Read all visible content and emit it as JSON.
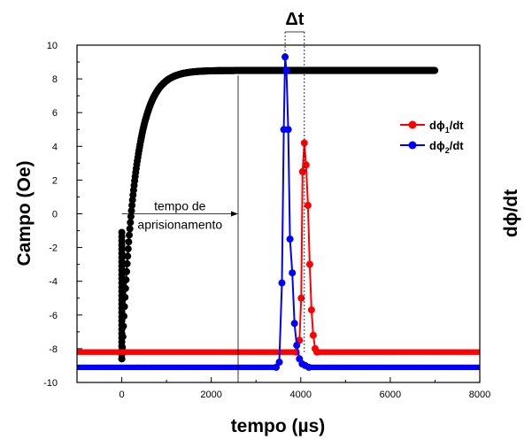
{
  "chart_data": {
    "type": "scatter",
    "xlabel": "tempo (µs)",
    "ylabel_left": "Campo (Oe)",
    "ylabel_right": "dϕ/dt",
    "xlim": [
      -1000,
      8000
    ],
    "ylim": [
      -10,
      10
    ],
    "x_ticks": [
      0,
      2000,
      4000,
      6000,
      8000
    ],
    "y_ticks": [
      -10,
      -8,
      -6,
      -4,
      -2,
      0,
      2,
      4,
      6,
      8,
      10
    ],
    "legend_position": "right",
    "annotations": {
      "delta_t": "Δt",
      "trap_label_line1": "tempo de",
      "trap_label_line2": "aprisionamento",
      "trap_arrow": {
        "from_x": 0,
        "to_x": 2600,
        "y": 0
      },
      "trap_vertical_line_x": 2600,
      "peak_blue_x": 3650,
      "peak_red_x": 4080
    },
    "series": [
      {
        "name": "Campo",
        "color": "#000000",
        "kind": "rise",
        "x_start": 0,
        "x_end": 7000,
        "y_start": -8.6,
        "y_plateau": 8.5,
        "tau": 300
      },
      {
        "name": "dϕ₁/dt",
        "legend_base": "dϕ",
        "legend_sub": "1",
        "legend_suffix": "/dt",
        "color": "#ff0000",
        "baseline": -8.2,
        "x_start": -1000,
        "x_end": 8000,
        "peak": [
          [
            3900,
            -8.2
          ],
          [
            3970,
            -7.5
          ],
          [
            4010,
            -5.0
          ],
          [
            4040,
            2.5
          ],
          [
            4080,
            4.2
          ],
          [
            4120,
            2.9
          ],
          [
            4160,
            0.5
          ],
          [
            4200,
            -3.0
          ],
          [
            4240,
            -5.7
          ],
          [
            4280,
            -7.2
          ],
          [
            4320,
            -8.0
          ],
          [
            4360,
            -8.2
          ]
        ]
      },
      {
        "name": "dϕ₂/dt",
        "legend_base": "dϕ",
        "legend_sub": "2",
        "legend_suffix": "/dt",
        "color": "#0000ff",
        "baseline": -9.1,
        "x_start": -1000,
        "x_end": 8000,
        "peak": [
          [
            3450,
            -9.1
          ],
          [
            3520,
            -8.8
          ],
          [
            3580,
            -4.1
          ],
          [
            3620,
            5.0
          ],
          [
            3650,
            9.3
          ],
          [
            3680,
            8.5
          ],
          [
            3720,
            5.0
          ],
          [
            3760,
            -1.5
          ],
          [
            3810,
            -3.5
          ],
          [
            3860,
            -6.5
          ],
          [
            3910,
            -7.8
          ],
          [
            3970,
            -8.6
          ],
          [
            4030,
            -8.9
          ],
          [
            4100,
            -9.0
          ],
          [
            4180,
            -9.1
          ]
        ]
      }
    ]
  }
}
